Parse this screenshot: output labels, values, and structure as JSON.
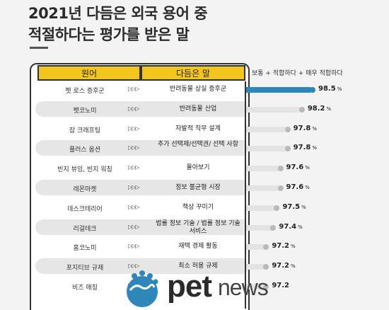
{
  "title": {
    "line1": "2021년 다듬은 외국 용어 중",
    "line2": "적절하다는 평가를 받은 말"
  },
  "columns": {
    "term": "원어",
    "alternative": "다듬은 말",
    "value": "보통 + 적합하다 + 매우 적합하다"
  },
  "arrows": "▷▷▷",
  "colors": {
    "highlight": "#2f86b8",
    "header": "#f3c51f",
    "bar": "#e3e3e3"
  },
  "logo": {
    "pet": "pet",
    "news": "news",
    "icon": "paw-globe-icon"
  },
  "chart_data": {
    "type": "bar",
    "orientation": "horizontal",
    "unit": "%",
    "categories": [
      "펫 로스 증후군",
      "펫코노미",
      "잡 크래프팅",
      "플러스 옵션",
      "빈지 뷰잉, 빈지 워칭",
      "레몬마켓",
      "데스크테리어",
      "리걸테크",
      "홈코노미",
      "포지티브 규제",
      "비즈 매칭"
    ],
    "alternatives": [
      "반려동물 상실 증후군",
      "반려동물 산업",
      "자발적 직무 설계",
      "추가 선택제/선택권/ 선택 사항",
      "몰아보기",
      "정보 불균형 시장",
      "책상 꾸미기",
      "법률 정보 기술 / 법률 정보 기술 서비스",
      "재택 경제 활동",
      "최소 허용 규제",
      ""
    ],
    "values": [
      98.5,
      98.2,
      97.8,
      97.8,
      97.6,
      97.6,
      97.5,
      97.4,
      97.2,
      97.2,
      97.2
    ],
    "value_labels": [
      "98.5",
      "98.2",
      "97.8",
      "97.8",
      "97.6",
      "97.6",
      "97.5",
      "97.4",
      "97.2",
      "97.2",
      "97.2"
    ],
    "percent_marks": [
      "%",
      "%",
      "%",
      "%",
      "%",
      "%",
      "%",
      "%",
      "%",
      "%",
      ""
    ],
    "highlight_index": 0
  }
}
